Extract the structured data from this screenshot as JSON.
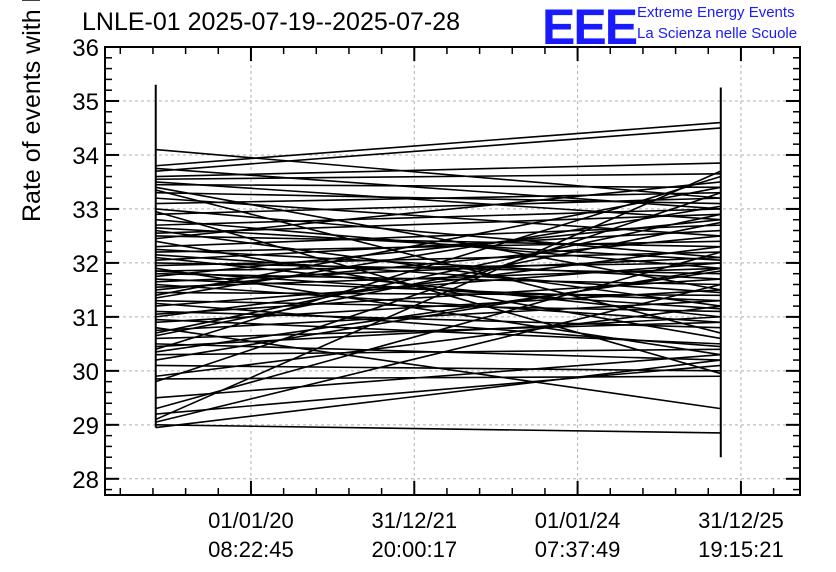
{
  "title": "LNLE-01 2025-07-19--2025-07-28",
  "logo": {
    "mark": "EEE",
    "line1": "Extreme Energy Events",
    "line2": "La Scienza nelle Scuole",
    "color": "#1a1aff"
  },
  "chart_data": {
    "type": "line",
    "ylabel": "Rate of events with hits [Hz]",
    "xlabel": "",
    "ylim": [
      27.7,
      36
    ],
    "yticks": [
      28,
      29,
      30,
      31,
      32,
      33,
      34,
      35,
      36
    ],
    "xlim": [
      0,
      1
    ],
    "xticks": [
      {
        "pos": 0.21,
        "date": "01/01/20",
        "time": "08:22:45"
      },
      {
        "pos": 0.445,
        "date": "31/12/21",
        "time": "20:00:17"
      },
      {
        "pos": 0.68,
        "date": "01/01/24",
        "time": "07:37:49"
      },
      {
        "pos": 0.915,
        "date": "31/12/25",
        "time": "19:15:21"
      }
    ],
    "grid": true,
    "x_start": 0.073,
    "x_end": 0.886,
    "error_bars": [
      {
        "x": 0.073,
        "low": 28.95,
        "high": 35.3
      },
      {
        "x": 0.886,
        "low": 28.4,
        "high": 35.25
      }
    ],
    "series": [
      {
        "y0": 34.1,
        "y1": 33.2
      },
      {
        "y0": 33.8,
        "y1": 34.6
      },
      {
        "y0": 33.7,
        "y1": 34.5
      },
      {
        "y0": 33.75,
        "y1": 33.0
      },
      {
        "y0": 33.6,
        "y1": 33.85
      },
      {
        "y0": 33.55,
        "y1": 33.65
      },
      {
        "y0": 33.5,
        "y1": 32.8
      },
      {
        "y0": 33.45,
        "y1": 33.4
      },
      {
        "y0": 33.4,
        "y1": 31.5
      },
      {
        "y0": 33.3,
        "y1": 33.1
      },
      {
        "y0": 33.2,
        "y1": 32.5
      },
      {
        "y0": 33.1,
        "y1": 33.3
      },
      {
        "y0": 33.0,
        "y1": 32.1
      },
      {
        "y0": 32.9,
        "y1": 33.2
      },
      {
        "y0": 32.8,
        "y1": 31.9
      },
      {
        "y0": 32.7,
        "y1": 33.0
      },
      {
        "y0": 32.6,
        "y1": 31.2
      },
      {
        "y0": 32.55,
        "y1": 32.9
      },
      {
        "y0": 32.5,
        "y1": 32.3
      },
      {
        "y0": 32.4,
        "y1": 30.6
      },
      {
        "y0": 32.3,
        "y1": 32.7
      },
      {
        "y0": 32.25,
        "y1": 31.7
      },
      {
        "y0": 32.2,
        "y1": 32.4
      },
      {
        "y0": 32.1,
        "y1": 31.0
      },
      {
        "y0": 32.05,
        "y1": 32.6
      },
      {
        "y0": 32.0,
        "y1": 31.8
      },
      {
        "y0": 31.95,
        "y1": 32.2
      },
      {
        "y0": 31.9,
        "y1": 30.3
      },
      {
        "y0": 31.85,
        "y1": 32.0
      },
      {
        "y0": 31.8,
        "y1": 31.6
      },
      {
        "y0": 31.75,
        "y1": 32.8
      },
      {
        "y0": 31.7,
        "y1": 31.3
      },
      {
        "y0": 31.65,
        "y1": 32.1
      },
      {
        "y0": 31.6,
        "y1": 30.9
      },
      {
        "y0": 31.55,
        "y1": 31.9
      },
      {
        "y0": 31.5,
        "y1": 32.5
      },
      {
        "y0": 31.45,
        "y1": 31.4
      },
      {
        "y0": 31.4,
        "y1": 33.4
      },
      {
        "y0": 31.3,
        "y1": 31.1
      },
      {
        "y0": 31.2,
        "y1": 32.0
      },
      {
        "y0": 31.1,
        "y1": 30.8
      },
      {
        "y0": 31.05,
        "y1": 31.7
      },
      {
        "y0": 31.0,
        "y1": 32.3
      },
      {
        "y0": 30.95,
        "y1": 30.5
      },
      {
        "y0": 30.9,
        "y1": 31.5
      },
      {
        "y0": 30.8,
        "y1": 29.3
      },
      {
        "y0": 30.75,
        "y1": 31.3
      },
      {
        "y0": 30.7,
        "y1": 32.9
      },
      {
        "y0": 30.6,
        "y1": 30.9
      },
      {
        "y0": 30.5,
        "y1": 30.2
      },
      {
        "y0": 30.45,
        "y1": 31.0
      },
      {
        "y0": 30.4,
        "y1": 33.6
      },
      {
        "y0": 30.3,
        "y1": 30.4
      },
      {
        "y0": 30.2,
        "y1": 31.9
      },
      {
        "y0": 30.1,
        "y1": 30.0
      },
      {
        "y0": 29.9,
        "y1": 31.2
      },
      {
        "y0": 29.85,
        "y1": 29.9
      },
      {
        "y0": 29.8,
        "y1": 33.3
      },
      {
        "y0": 29.5,
        "y1": 30.3
      },
      {
        "y0": 29.3,
        "y1": 32.2
      },
      {
        "y0": 29.2,
        "y1": 30.1
      },
      {
        "y0": 29.1,
        "y1": 33.7
      },
      {
        "y0": 29.05,
        "y1": 31.6
      },
      {
        "y0": 29.0,
        "y1": 28.85
      },
      {
        "y0": 28.95,
        "y1": 30.2
      },
      {
        "y0": 33.35,
        "y1": 30.7
      },
      {
        "y0": 32.95,
        "y1": 29.95
      },
      {
        "y0": 32.45,
        "y1": 33.5
      },
      {
        "y0": 31.25,
        "y1": 30.45
      },
      {
        "y0": 30.65,
        "y1": 32.75
      },
      {
        "y0": 32.15,
        "y1": 31.45
      },
      {
        "y0": 31.85,
        "y1": 31.15
      },
      {
        "y0": 32.65,
        "y1": 32.05
      },
      {
        "y0": 31.35,
        "y1": 33.05
      },
      {
        "y0": 30.35,
        "y1": 31.85
      }
    ]
  }
}
